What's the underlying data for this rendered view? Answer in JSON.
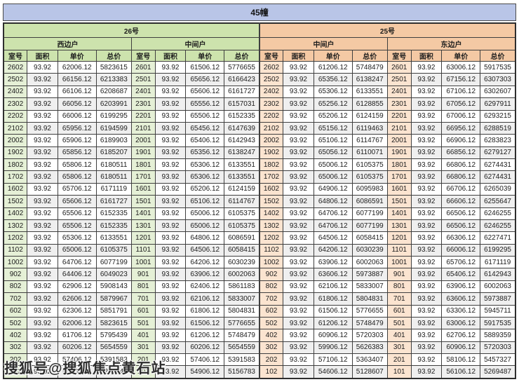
{
  "title": "45幢",
  "watermark": "搜狐号@搜狐焦点黄石站",
  "columns": [
    "室号",
    "面积",
    "单价",
    "总价"
  ],
  "colors": {
    "title_bg": "#b9c5e7",
    "green_header": "#cde3ad",
    "green_room_cell": "#e5f0d6",
    "peach_header": "#f4c9a4",
    "peach_room_cell": "#fbe4d0",
    "row_stripe": "#efefef",
    "grid_border": "#3f3f3f"
  },
  "sections": [
    {
      "building": "26号",
      "theme": "green",
      "units": [
        {
          "label": "西边户",
          "rows": [
            [
              "2602",
              "93.92",
              "62006.12",
              "5823615"
            ],
            [
              "2502",
              "93.92",
              "66156.12",
              "6213383"
            ],
            [
              "2402",
              "93.92",
              "66106.12",
              "6208687"
            ],
            [
              "2302",
              "93.92",
              "66056.12",
              "6203991"
            ],
            [
              "2202",
              "93.92",
              "66006.12",
              "6199295"
            ],
            [
              "2102",
              "93.92",
              "65956.12",
              "6194599"
            ],
            [
              "2002",
              "93.92",
              "65906.12",
              "6189903"
            ],
            [
              "1902",
              "93.92",
              "65856.12",
              "6185207"
            ],
            [
              "1802",
              "93.92",
              "65806.12",
              "6180511"
            ],
            [
              "1702",
              "93.92",
              "65806.12",
              "6180511"
            ],
            [
              "1602",
              "93.92",
              "65706.12",
              "6171119"
            ],
            [
              "1502",
              "93.92",
              "65606.12",
              "6161727"
            ],
            [
              "1402",
              "93.92",
              "65506.12",
              "6152335"
            ],
            [
              "1302",
              "93.92",
              "65506.12",
              "6152335"
            ],
            [
              "1202",
              "93.92",
              "65306.12",
              "6133551"
            ],
            [
              "1102",
              "93.92",
              "65006.12",
              "6105375"
            ],
            [
              "1002",
              "93.92",
              "64706.12",
              "6077199"
            ],
            [
              "902",
              "93.92",
              "64406.12",
              "6049023"
            ],
            [
              "802",
              "93.92",
              "62906.12",
              "5908143"
            ],
            [
              "702",
              "93.92",
              "62606.12",
              "5879967"
            ],
            [
              "602",
              "93.92",
              "62306.12",
              "5851791"
            ],
            [
              "502",
              "93.92",
              "62006.12",
              "5823615"
            ],
            [
              "402",
              "93.92",
              "61706.12",
              "5795439"
            ],
            [
              "302",
              "93.92",
              "60206.12",
              "5654559"
            ],
            [
              "202",
              "93.92",
              "57406.12",
              "5391583"
            ],
            [
              "102",
              "93.92",
              "55406.12",
              "5203743"
            ]
          ]
        },
        {
          "label": "中间户",
          "rows": [
            [
              "2601",
              "93.92",
              "61506.12",
              "5776655"
            ],
            [
              "2501",
              "93.92",
              "65656.12",
              "6166423"
            ],
            [
              "2401",
              "93.92",
              "65606.12",
              "6161727"
            ],
            [
              "2301",
              "93.92",
              "65556.12",
              "6157031"
            ],
            [
              "2201",
              "93.92",
              "65506.12",
              "6152335"
            ],
            [
              "2101",
              "93.92",
              "65456.12",
              "6147639"
            ],
            [
              "2001",
              "93.92",
              "65406.12",
              "6142943"
            ],
            [
              "1901",
              "93.92",
              "65356.12",
              "6138247"
            ],
            [
              "1801",
              "93.92",
              "65306.12",
              "6133551"
            ],
            [
              "1701",
              "93.92",
              "65306.12",
              "6133551"
            ],
            [
              "1601",
              "93.92",
              "65206.12",
              "6124159"
            ],
            [
              "1501",
              "93.92",
              "65106.12",
              "6114767"
            ],
            [
              "1401",
              "93.92",
              "65006.12",
              "6105375"
            ],
            [
              "1301",
              "93.92",
              "65006.12",
              "6105375"
            ],
            [
              "1201",
              "93.92",
              "64806.12",
              "6086591"
            ],
            [
              "1101",
              "93.92",
              "64506.12",
              "6058415"
            ],
            [
              "1001",
              "93.92",
              "64206.12",
              "6030239"
            ],
            [
              "901",
              "93.92",
              "63906.12",
              "6002063"
            ],
            [
              "801",
              "93.92",
              "62406.12",
              "5861183"
            ],
            [
              "701",
              "93.92",
              "62106.12",
              "5833007"
            ],
            [
              "601",
              "93.92",
              "61806.12",
              "5804831"
            ],
            [
              "501",
              "93.92",
              "61506.12",
              "5776655"
            ],
            [
              "401",
              "93.92",
              "61206.12",
              "5748479"
            ],
            [
              "301",
              "93.92",
              "60206.12",
              "5654559"
            ],
            [
              "201",
              "93.92",
              "57406.12",
              "5391583"
            ],
            [
              "101",
              "93.92",
              "54906.12",
              "5156783"
            ]
          ]
        }
      ]
    },
    {
      "building": "25号",
      "theme": "peach",
      "units": [
        {
          "label": "中间户",
          "rows": [
            [
              "2602",
              "93.92",
              "61206.12",
              "5748479"
            ],
            [
              "2502",
              "93.92",
              "65356.12",
              "6138247"
            ],
            [
              "2402",
              "93.92",
              "65306.12",
              "6133551"
            ],
            [
              "2302",
              "93.92",
              "65256.12",
              "6128855"
            ],
            [
              "2202",
              "93.92",
              "65206.12",
              "6124159"
            ],
            [
              "2102",
              "93.92",
              "65156.12",
              "6119463"
            ],
            [
              "2002",
              "93.92",
              "65106.12",
              "6114767"
            ],
            [
              "1902",
              "93.92",
              "65056.12",
              "6110071"
            ],
            [
              "1802",
              "93.92",
              "65006.12",
              "6105375"
            ],
            [
              "1702",
              "93.92",
              "65006.12",
              "6105375"
            ],
            [
              "1602",
              "93.92",
              "64906.12",
              "6095983"
            ],
            [
              "1502",
              "93.92",
              "64806.12",
              "6086591"
            ],
            [
              "1402",
              "93.92",
              "64706.12",
              "6077199"
            ],
            [
              "1302",
              "93.92",
              "64706.12",
              "6077199"
            ],
            [
              "1202",
              "93.92",
              "64506.12",
              "6058415"
            ],
            [
              "1102",
              "93.92",
              "64206.12",
              "6030239"
            ],
            [
              "1002",
              "93.92",
              "63906.12",
              "6002063"
            ],
            [
              "902",
              "93.92",
              "63606.12",
              "5973887"
            ],
            [
              "802",
              "93.92",
              "62106.12",
              "5833007"
            ],
            [
              "702",
              "93.92",
              "61806.12",
              "5804831"
            ],
            [
              "602",
              "93.92",
              "61506.12",
              "5776655"
            ],
            [
              "502",
              "93.92",
              "61206.12",
              "5748479"
            ],
            [
              "402",
              "93.92",
              "60906.12",
              "5720303"
            ],
            [
              "302",
              "93.92",
              "59906.12",
              "5626383"
            ],
            [
              "202",
              "93.92",
              "57106.12",
              "5363407"
            ],
            [
              "102",
              "93.92",
              "54606.12",
              "5128607"
            ]
          ]
        },
        {
          "label": "东边户",
          "rows": [
            [
              "2601",
              "93.92",
              "63006.12",
              "5917535"
            ],
            [
              "2501",
              "93.92",
              "67156.12",
              "6307303"
            ],
            [
              "2401",
              "93.92",
              "67106.12",
              "6302607"
            ],
            [
              "2301",
              "93.92",
              "67056.12",
              "6297911"
            ],
            [
              "2201",
              "93.92",
              "67006.12",
              "6293215"
            ],
            [
              "2101",
              "93.92",
              "66956.12",
              "6288519"
            ],
            [
              "2001",
              "93.92",
              "66906.12",
              "6283823"
            ],
            [
              "1901",
              "93.92",
              "66856.12",
              "6279127"
            ],
            [
              "1801",
              "93.92",
              "66806.12",
              "6274431"
            ],
            [
              "1701",
              "93.92",
              "66806.12",
              "6274431"
            ],
            [
              "1601",
              "93.92",
              "66706.12",
              "6265039"
            ],
            [
              "1501",
              "93.92",
              "66606.12",
              "6255647"
            ],
            [
              "1401",
              "93.92",
              "66506.12",
              "6246255"
            ],
            [
              "1301",
              "93.92",
              "66506.12",
              "6246255"
            ],
            [
              "1201",
              "93.92",
              "66306.12",
              "6227471"
            ],
            [
              "1101",
              "93.92",
              "66006.12",
              "6199295"
            ],
            [
              "1001",
              "93.92",
              "65706.12",
              "6171119"
            ],
            [
              "901",
              "93.92",
              "65406.12",
              "6142943"
            ],
            [
              "801",
              "93.92",
              "63906.12",
              "6002063"
            ],
            [
              "701",
              "93.92",
              "63606.12",
              "5973887"
            ],
            [
              "601",
              "93.92",
              "63306.12",
              "5945711"
            ],
            [
              "501",
              "93.92",
              "63006.12",
              "5917535"
            ],
            [
              "401",
              "93.92",
              "62706.12",
              "5889359"
            ],
            [
              "301",
              "93.92",
              "60906.12",
              "5720303"
            ],
            [
              "201",
              "93.92",
              "58106.12",
              "5457327"
            ],
            [
              "101",
              "93.92",
              "56106.12",
              "5269487"
            ]
          ]
        }
      ]
    }
  ]
}
